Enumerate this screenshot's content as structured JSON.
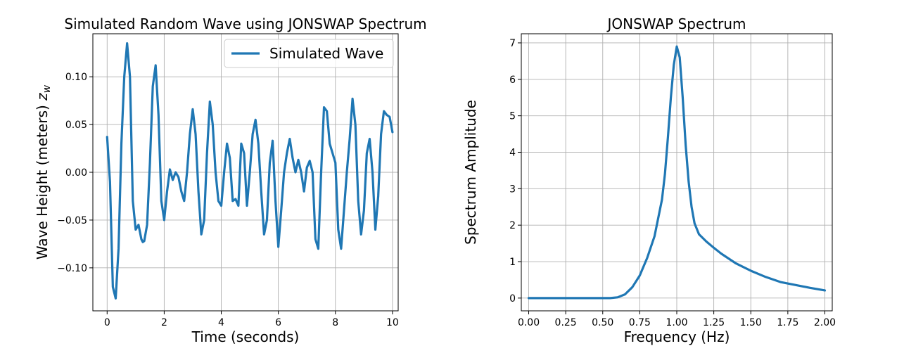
{
  "chart_data": [
    {
      "type": "line",
      "title": "Simulated Random Wave using JONSWAP Spectrum",
      "xlabel": "Time (seconds)",
      "ylabel": "Wave Height (meters) ",
      "ylabel_symbol": "z",
      "ylabel_subscript": "w",
      "xlim": [
        -0.5,
        10.2
      ],
      "ylim": [
        -0.145,
        0.145
      ],
      "xticks": [
        0,
        2,
        4,
        6,
        8,
        10
      ],
      "xtick_labels": [
        "0",
        "2",
        "4",
        "6",
        "8",
        "10"
      ],
      "yticks": [
        -0.1,
        -0.05,
        0.0,
        0.05,
        0.1
      ],
      "ytick_labels": [
        "−0.10",
        "−0.05",
        "0.00",
        "0.05",
        "0.10"
      ],
      "grid": true,
      "legend": {
        "position": "upper right",
        "entries": [
          "Simulated Wave"
        ]
      },
      "series": [
        {
          "name": "Simulated Wave",
          "color": "#1f77b4",
          "x": [
            0,
            0.1,
            0.2,
            0.3,
            0.4,
            0.5,
            0.6,
            0.7,
            0.8,
            0.9,
            1.0,
            1.1,
            1.2,
            1.25,
            1.3,
            1.4,
            1.5,
            1.6,
            1.7,
            1.8,
            1.9,
            2.0,
            2.1,
            2.2,
            2.3,
            2.4,
            2.5,
            2.6,
            2.7,
            2.8,
            2.9,
            3.0,
            3.1,
            3.2,
            3.3,
            3.4,
            3.5,
            3.6,
            3.7,
            3.8,
            3.9,
            4.0,
            4.1,
            4.2,
            4.3,
            4.4,
            4.5,
            4.6,
            4.7,
            4.8,
            4.9,
            5.0,
            5.1,
            5.2,
            5.3,
            5.4,
            5.5,
            5.6,
            5.7,
            5.8,
            5.9,
            6.0,
            6.1,
            6.2,
            6.3,
            6.4,
            6.5,
            6.6,
            6.7,
            6.8,
            6.9,
            7.0,
            7.1,
            7.2,
            7.3,
            7.4,
            7.5,
            7.6,
            7.7,
            7.8,
            7.9,
            8.0,
            8.1,
            8.2,
            8.3,
            8.4,
            8.5,
            8.6,
            8.7,
            8.8,
            8.9,
            9.0,
            9.1,
            9.2,
            9.3,
            9.4,
            9.5,
            9.6,
            9.7,
            9.8,
            9.9,
            10.0
          ],
          "y": [
            0.037,
            -0.01,
            -0.12,
            -0.132,
            -0.08,
            0.03,
            0.1,
            0.135,
            0.1,
            -0.03,
            -0.06,
            -0.055,
            -0.07,
            -0.073,
            -0.072,
            -0.055,
            0.01,
            0.09,
            0.112,
            0.06,
            -0.03,
            -0.05,
            -0.02,
            0.003,
            -0.008,
            0.0,
            -0.005,
            -0.02,
            -0.03,
            0.0,
            0.04,
            0.066,
            0.04,
            -0.02,
            -0.065,
            -0.05,
            0.02,
            0.074,
            0.05,
            0.0,
            -0.03,
            -0.035,
            0.0,
            0.03,
            0.015,
            -0.03,
            -0.028,
            -0.035,
            0.03,
            0.02,
            -0.035,
            0.0,
            0.04,
            0.055,
            0.03,
            -0.02,
            -0.065,
            -0.05,
            0.01,
            0.033,
            -0.03,
            -0.078,
            -0.04,
            0.0,
            0.02,
            0.035,
            0.015,
            0.0,
            0.013,
            0.0,
            -0.02,
            0.005,
            0.012,
            0.0,
            -0.07,
            -0.08,
            0.0,
            0.068,
            0.064,
            0.03,
            0.02,
            0.01,
            -0.06,
            -0.08,
            -0.04,
            0.0,
            0.035,
            0.077,
            0.05,
            -0.03,
            -0.065,
            -0.04,
            0.02,
            0.035,
            0.0,
            -0.06,
            -0.025,
            0.04,
            0.064,
            0.06,
            0.058,
            0.042
          ]
        }
      ]
    },
    {
      "type": "line",
      "title": "JONSWAP Spectrum",
      "xlabel": "Frequency (Hz)",
      "ylabel": "Spectrum Amplitude",
      "xlim": [
        -0.05,
        2.05
      ],
      "ylim": [
        -0.35,
        7.25
      ],
      "xticks": [
        0.0,
        0.25,
        0.5,
        0.75,
        1.0,
        1.25,
        1.5,
        1.75,
        2.0
      ],
      "xtick_labels": [
        "0.00",
        "0.25",
        "0.50",
        "0.75",
        "1.00",
        "1.25",
        "1.50",
        "1.75",
        "2.00"
      ],
      "yticks": [
        0,
        1,
        2,
        3,
        4,
        5,
        6,
        7
      ],
      "ytick_labels": [
        "0",
        "1",
        "2",
        "3",
        "4",
        "5",
        "6",
        "7"
      ],
      "grid": true,
      "series": [
        {
          "name": "JONSWAP",
          "color": "#1f77b4",
          "x": [
            0.0,
            0.3,
            0.55,
            0.6,
            0.65,
            0.7,
            0.75,
            0.8,
            0.85,
            0.9,
            0.92,
            0.94,
            0.96,
            0.98,
            1.0,
            1.02,
            1.04,
            1.06,
            1.08,
            1.1,
            1.12,
            1.15,
            1.2,
            1.25,
            1.3,
            1.4,
            1.5,
            1.6,
            1.7,
            1.8,
            1.9,
            2.0
          ],
          "y": [
            0.0,
            0.0,
            0.0,
            0.02,
            0.1,
            0.3,
            0.62,
            1.1,
            1.7,
            2.7,
            3.4,
            4.4,
            5.5,
            6.4,
            6.9,
            6.6,
            5.5,
            4.2,
            3.2,
            2.5,
            2.05,
            1.75,
            1.55,
            1.38,
            1.22,
            0.95,
            0.75,
            0.58,
            0.44,
            0.36,
            0.28,
            0.21
          ]
        }
      ]
    }
  ]
}
